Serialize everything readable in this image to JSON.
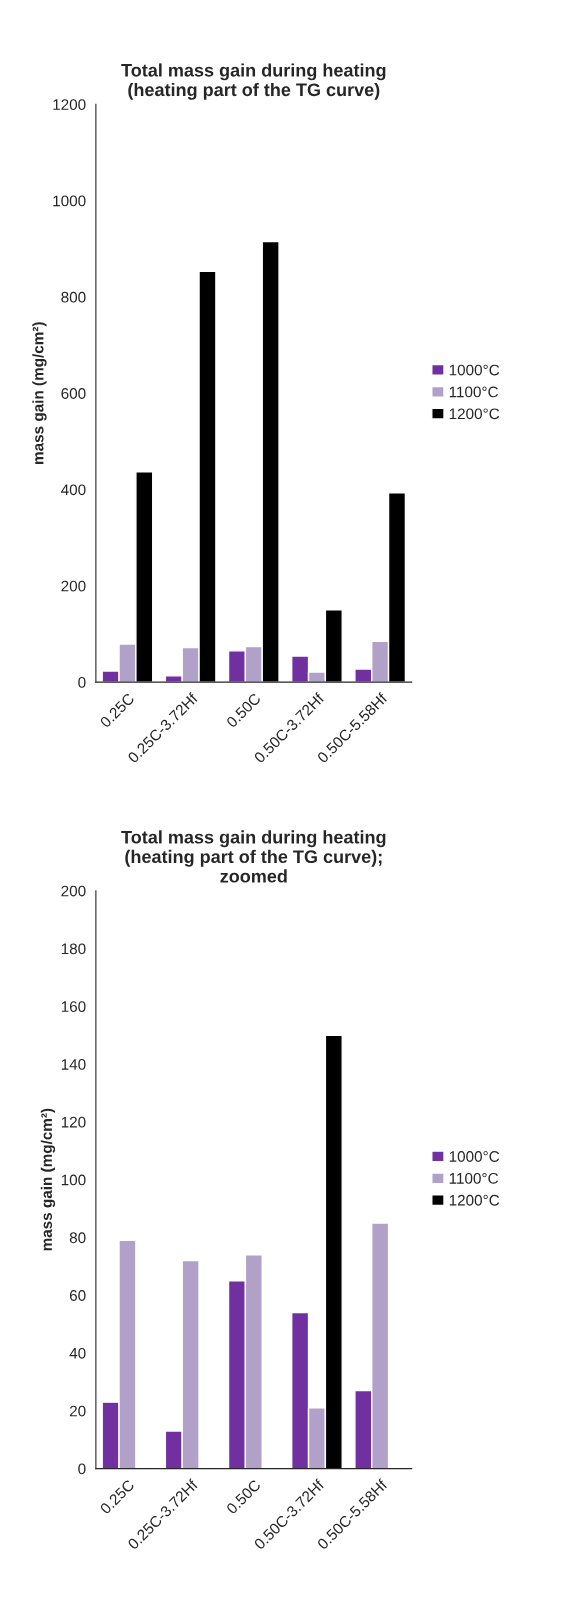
{
  "chart_data": [
    {
      "type": "bar",
      "title": "Total mass gain during heating\n(heating part of the TG curve)",
      "ylabel": "mass gain (mg/cm²)",
      "categories": [
        "0.25C",
        "0.25C-3.72Hf",
        "0.50C",
        "0.50C-3.72Hf",
        "0.50C-5.58Hf"
      ],
      "series": [
        {
          "name": "1000°C",
          "color": "#7030a0",
          "values": [
            23,
            13,
            65,
            54,
            27
          ]
        },
        {
          "name": "1100°C",
          "color": "#b1a0c7",
          "values": [
            79,
            72,
            74,
            21,
            85
          ]
        },
        {
          "name": "1200°C",
          "color": "#000000",
          "values": [
            437,
            853,
            915,
            150,
            393
          ]
        }
      ],
      "ylim": [
        0,
        1200
      ],
      "yticks": [
        0,
        200,
        400,
        600,
        800,
        1000,
        1200
      ],
      "grid": false,
      "legend": "right"
    },
    {
      "type": "bar",
      "title": "Total mass gain during heating\n(heating part of the TG curve);\nzoomed",
      "ylabel": "mass gain (mg/cm²)",
      "categories": [
        "0.25C",
        "0.25C-3.72Hf",
        "0.50C",
        "0.50C-3.72Hf",
        "0.50C-5.58Hf"
      ],
      "series": [
        {
          "name": "1000°C",
          "color": "#7030a0",
          "values": [
            23,
            13,
            65,
            54,
            27
          ]
        },
        {
          "name": "1100°C",
          "color": "#b1a0c7",
          "values": [
            79,
            72,
            74,
            21,
            85
          ]
        },
        {
          "name": "1200°C",
          "color": "#000000",
          "values": [
            null,
            null,
            null,
            150,
            null
          ]
        }
      ],
      "ylim": [
        0,
        200
      ],
      "yticks": [
        0,
        20,
        40,
        60,
        80,
        100,
        120,
        140,
        160,
        180,
        200
      ],
      "grid": false,
      "legend": "right"
    }
  ]
}
